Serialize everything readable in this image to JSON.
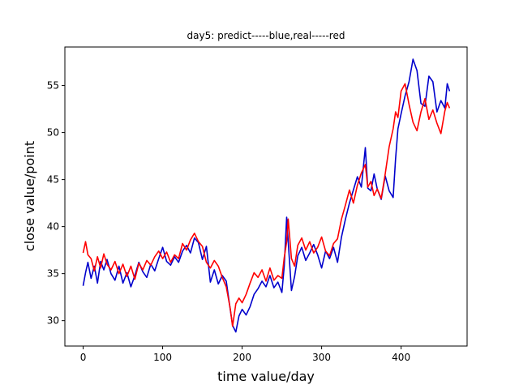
{
  "chart_data": {
    "type": "line",
    "title": "day5: predict-----blue,real-----red",
    "xlabel": "time value/day",
    "ylabel": "close value/point",
    "xlim": [
      -23,
      483
    ],
    "ylim": [
      27.3,
      59.1
    ],
    "xticks": [
      0,
      100,
      200,
      300,
      400
    ],
    "yticks": [
      30,
      35,
      40,
      45,
      50,
      55
    ],
    "grid": false,
    "series": [
      {
        "name": "predict",
        "color": "#0000cc",
        "x": [
          0,
          3,
          6,
          10,
          14,
          18,
          22,
          26,
          30,
          35,
          40,
          45,
          50,
          55,
          60,
          65,
          70,
          75,
          80,
          85,
          90,
          95,
          100,
          105,
          110,
          115,
          120,
          125,
          130,
          135,
          140,
          145,
          150,
          155,
          160,
          165,
          170,
          175,
          180,
          185,
          188,
          192,
          196,
          200,
          205,
          210,
          215,
          220,
          225,
          230,
          235,
          240,
          245,
          250,
          253,
          256,
          258,
          262,
          266,
          270,
          275,
          280,
          285,
          290,
          295,
          300,
          305,
          310,
          315,
          320,
          325,
          330,
          335,
          340,
          345,
          350,
          355,
          358,
          362,
          366,
          370,
          375,
          380,
          385,
          390,
          393,
          396,
          400,
          405,
          410,
          415,
          420,
          425,
          430,
          435,
          440,
          445,
          450,
          455,
          458,
          461
        ],
        "y": [
          33.7,
          35.1,
          36.2,
          34.5,
          35.8,
          34.0,
          36.3,
          35.4,
          36.5,
          35.0,
          34.3,
          35.8,
          34.0,
          35.1,
          33.6,
          34.8,
          36.2,
          35.2,
          34.6,
          36.0,
          35.3,
          36.6,
          37.8,
          36.3,
          35.9,
          36.8,
          36.2,
          37.4,
          38.0,
          37.2,
          38.8,
          38.3,
          36.5,
          37.9,
          34.1,
          35.4,
          33.9,
          34.8,
          34.2,
          31.2,
          29.5,
          28.8,
          30.5,
          31.2,
          30.6,
          31.5,
          32.8,
          33.4,
          34.2,
          33.6,
          34.8,
          33.5,
          34.1,
          33.0,
          35.8,
          41.0,
          38.4,
          33.2,
          34.7,
          36.9,
          37.8,
          36.4,
          37.2,
          38.1,
          37.0,
          35.6,
          37.4,
          36.6,
          37.8,
          36.2,
          38.9,
          40.8,
          42.5,
          43.9,
          45.3,
          44.2,
          48.4,
          44.1,
          43.8,
          45.6,
          44.0,
          42.9,
          45.4,
          43.8,
          43.1,
          47.2,
          50.4,
          52.0,
          53.9,
          55.4,
          57.8,
          56.6,
          53.1,
          52.8,
          56.0,
          55.4,
          52.2,
          53.4,
          52.6,
          55.2,
          54.4
        ]
      },
      {
        "name": "real",
        "color": "#ff0000",
        "x": [
          0,
          3,
          6,
          10,
          14,
          18,
          22,
          26,
          30,
          35,
          40,
          45,
          50,
          55,
          60,
          65,
          70,
          75,
          80,
          85,
          90,
          95,
          100,
          105,
          110,
          115,
          120,
          125,
          130,
          135,
          140,
          145,
          150,
          155,
          160,
          165,
          170,
          175,
          180,
          185,
          188,
          192,
          196,
          200,
          205,
          210,
          215,
          220,
          225,
          230,
          235,
          240,
          245,
          250,
          253,
          256,
          258,
          262,
          266,
          270,
          275,
          280,
          285,
          290,
          295,
          300,
          305,
          310,
          315,
          320,
          325,
          330,
          335,
          340,
          345,
          350,
          355,
          358,
          362,
          366,
          370,
          375,
          380,
          385,
          390,
          393,
          396,
          400,
          405,
          410,
          415,
          420,
          425,
          430,
          435,
          440,
          445,
          450,
          455,
          458,
          461
        ],
        "y": [
          37.2,
          38.4,
          37.0,
          36.6,
          35.3,
          36.8,
          35.6,
          37.1,
          36.0,
          35.4,
          36.3,
          35.0,
          36.0,
          34.7,
          35.8,
          34.4,
          36.1,
          35.4,
          36.4,
          35.9,
          36.8,
          37.4,
          36.6,
          37.3,
          36.2,
          37.0,
          36.6,
          38.2,
          37.5,
          38.6,
          39.3,
          38.4,
          37.9,
          36.2,
          35.6,
          36.4,
          35.8,
          34.6,
          33.6,
          31.3,
          29.4,
          31.8,
          32.4,
          31.9,
          32.8,
          34.0,
          35.1,
          34.6,
          35.4,
          34.2,
          35.6,
          34.3,
          34.8,
          34.5,
          36.7,
          38.4,
          40.8,
          36.6,
          35.8,
          38.0,
          38.8,
          37.5,
          38.4,
          37.2,
          37.8,
          38.9,
          37.4,
          36.9,
          38.2,
          38.7,
          40.8,
          42.3,
          43.9,
          42.5,
          44.4,
          45.7,
          46.6,
          44.2,
          44.8,
          43.3,
          44.0,
          43.0,
          45.6,
          48.5,
          50.4,
          52.2,
          51.6,
          54.4,
          55.2,
          53.0,
          51.1,
          50.2,
          52.2,
          53.6,
          51.4,
          52.4,
          51.0,
          49.9,
          52.3,
          53.2,
          52.6
        ]
      }
    ]
  }
}
